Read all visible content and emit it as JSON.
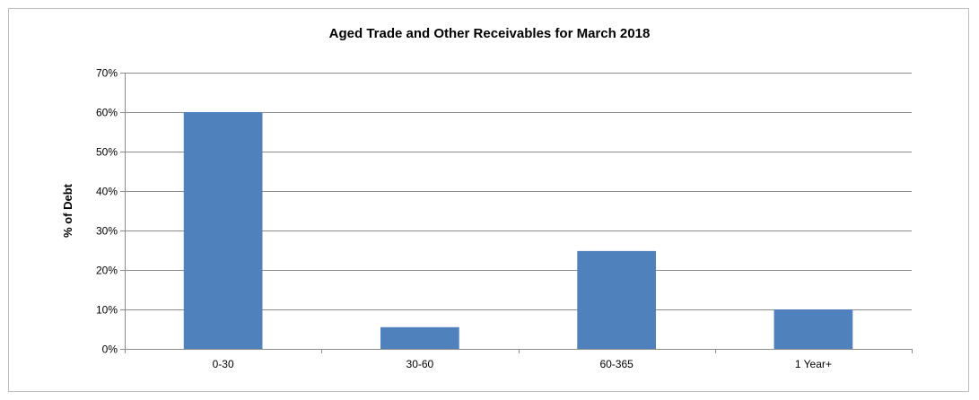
{
  "chart_data": {
    "type": "bar",
    "title": "Aged Trade and Other Receivables for March 2018",
    "xlabel": "",
    "ylabel": "% of Debt",
    "categories": [
      "0-30",
      "30-60",
      "60-365",
      "1 Year+"
    ],
    "values": [
      60,
      5.5,
      24.8,
      10
    ],
    "ylim": [
      0,
      70
    ],
    "yticks": [
      "0%",
      "10%",
      "20%",
      "30%",
      "40%",
      "50%",
      "60%",
      "70%"
    ],
    "grid": true,
    "bar_color": "#4f81bd"
  }
}
